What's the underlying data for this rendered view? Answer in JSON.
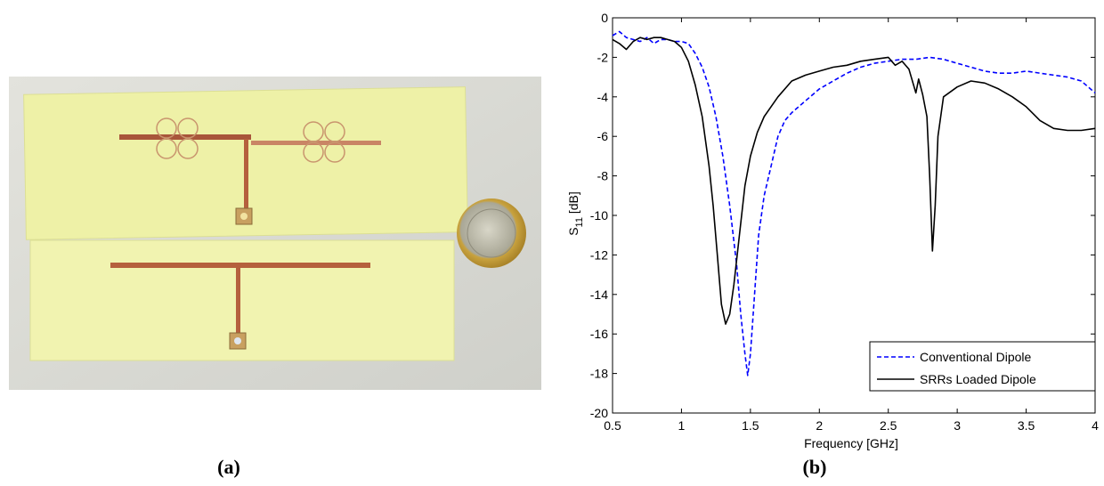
{
  "figure": {
    "caption_a": "(a)",
    "caption_b": "(b)"
  },
  "colors": {
    "background": "#ffffff",
    "conventional": "#0000ff",
    "srr": "#000000",
    "substrate": "#f1f3b0",
    "copper": "#b5603d",
    "coin": "#c9a441"
  },
  "chart_data": {
    "type": "line",
    "title": "",
    "xlabel": "Frequency [GHz]",
    "ylabel": "S11 [dB]",
    "ylabel_main": "S",
    "ylabel_sub": "11",
    "ylabel_unit": " [dB]",
    "xlim": [
      0.5,
      4
    ],
    "ylim": [
      -20,
      0
    ],
    "xticks": [
      0.5,
      1,
      1.5,
      2,
      2.5,
      3,
      3.5,
      4
    ],
    "xtick_labels": [
      "0.5",
      "1",
      "1.5",
      "2",
      "2.5",
      "3",
      "3.5",
      "4"
    ],
    "yticks": [
      0,
      -2,
      -4,
      -6,
      -8,
      -10,
      -12,
      -14,
      -16,
      -18,
      -20
    ],
    "ytick_labels": [
      "0",
      "-2",
      "-4",
      "-6",
      "-8",
      "-10",
      "-12",
      "-14",
      "-16",
      "-18",
      "-20"
    ],
    "grid": false,
    "legend_position": "bottom-right",
    "series": [
      {
        "name": "Conventional Dipole",
        "style": "dashed",
        "color": "#0000ff",
        "x": [
          0.5,
          0.55,
          0.6,
          0.65,
          0.7,
          0.75,
          0.8,
          0.85,
          0.9,
          0.95,
          1.0,
          1.05,
          1.1,
          1.15,
          1.2,
          1.25,
          1.3,
          1.35,
          1.4,
          1.43,
          1.46,
          1.48,
          1.5,
          1.53,
          1.56,
          1.6,
          1.65,
          1.7,
          1.75,
          1.8,
          1.9,
          2.0,
          2.1,
          2.2,
          2.3,
          2.4,
          2.5,
          2.6,
          2.7,
          2.8,
          2.9,
          3.0,
          3.1,
          3.2,
          3.3,
          3.4,
          3.5,
          3.6,
          3.7,
          3.8,
          3.9,
          4.0
        ],
        "y": [
          -0.9,
          -0.7,
          -1.0,
          -1.1,
          -1.2,
          -1.0,
          -1.3,
          -1.1,
          -1.1,
          -1.2,
          -1.2,
          -1.3,
          -1.8,
          -2.5,
          -3.5,
          -5.0,
          -7.0,
          -9.5,
          -12.5,
          -15.0,
          -17.0,
          -18.1,
          -17.0,
          -14.0,
          -11.0,
          -9.0,
          -7.5,
          -6.0,
          -5.2,
          -4.8,
          -4.2,
          -3.6,
          -3.2,
          -2.8,
          -2.5,
          -2.3,
          -2.2,
          -2.1,
          -2.1,
          -2.0,
          -2.1,
          -2.3,
          -2.5,
          -2.7,
          -2.8,
          -2.8,
          -2.7,
          -2.8,
          -2.9,
          -3.0,
          -3.2,
          -3.8
        ]
      },
      {
        "name": "SRRs Loaded Dipole",
        "style": "solid",
        "color": "#000000",
        "x": [
          0.5,
          0.55,
          0.6,
          0.65,
          0.7,
          0.75,
          0.8,
          0.85,
          0.9,
          0.95,
          1.0,
          1.05,
          1.1,
          1.15,
          1.2,
          1.23,
          1.26,
          1.29,
          1.32,
          1.35,
          1.38,
          1.42,
          1.46,
          1.5,
          1.55,
          1.6,
          1.7,
          1.8,
          1.9,
          2.0,
          2.1,
          2.2,
          2.3,
          2.4,
          2.5,
          2.55,
          2.6,
          2.65,
          2.7,
          2.72,
          2.75,
          2.78,
          2.8,
          2.82,
          2.84,
          2.86,
          2.9,
          3.0,
          3.1,
          3.2,
          3.3,
          3.4,
          3.5,
          3.6,
          3.7,
          3.8,
          3.9,
          4.0
        ],
        "y": [
          -1.1,
          -1.3,
          -1.6,
          -1.2,
          -1.0,
          -1.1,
          -1.0,
          -1.0,
          -1.1,
          -1.2,
          -1.5,
          -2.2,
          -3.4,
          -5.0,
          -7.5,
          -9.5,
          -12.0,
          -14.5,
          -15.5,
          -15.0,
          -13.5,
          -11.0,
          -8.5,
          -7.0,
          -5.8,
          -5.0,
          -4.0,
          -3.2,
          -2.9,
          -2.7,
          -2.5,
          -2.4,
          -2.2,
          -2.1,
          -2.0,
          -2.4,
          -2.2,
          -2.6,
          -3.8,
          -3.1,
          -3.9,
          -5.0,
          -8.0,
          -11.8,
          -9.5,
          -6.0,
          -4.0,
          -3.5,
          -3.2,
          -3.3,
          -3.6,
          -4.0,
          -4.5,
          -5.2,
          -5.6,
          -5.7,
          -5.7,
          -5.6
        ]
      }
    ]
  }
}
